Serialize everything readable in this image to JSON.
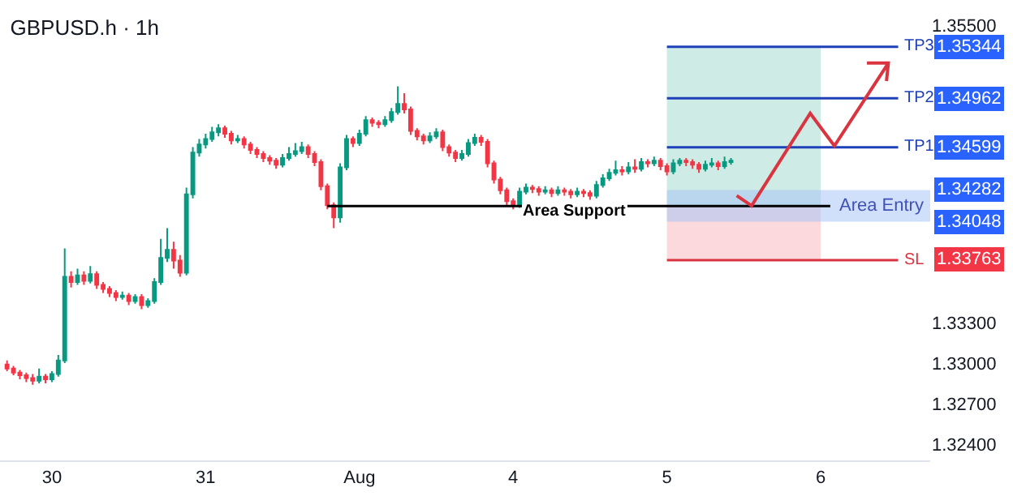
{
  "chart_data": {
    "type": "candlestick",
    "title": "GBPUSD.h · 1h",
    "categories": [
      null,
      null,
      null,
      null,
      null,
      null,
      null,
      "30",
      null,
      null,
      null,
      null,
      null,
      null,
      null,
      null,
      null,
      null,
      null,
      null,
      null,
      null,
      null,
      null,
      null,
      null,
      null,
      null,
      null,
      null,
      null,
      "31",
      null,
      null,
      null,
      null,
      null,
      null,
      null,
      null,
      null,
      null,
      null,
      null,
      null,
      null,
      null,
      null,
      null,
      null,
      null,
      null,
      null,
      null,
      null,
      "Aug",
      null,
      null,
      null,
      null,
      null,
      null,
      null,
      null,
      null,
      null,
      null,
      null,
      null,
      null,
      null,
      null,
      null,
      null,
      null,
      null,
      null,
      null,
      null,
      "4",
      null,
      null,
      null,
      null,
      null,
      null,
      null,
      null,
      null,
      null,
      null,
      null,
      null,
      null,
      null,
      null,
      null,
      null,
      null,
      null,
      null,
      null,
      null,
      "5",
      null,
      null,
      null,
      null,
      null,
      null,
      null,
      null,
      null,
      null,
      null,
      null,
      null,
      null,
      null,
      null,
      null,
      null,
      null,
      null,
      null,
      null,
      null,
      "6",
      null,
      null,
      null,
      null,
      null,
      null,
      null,
      null,
      null,
      null,
      null,
      null,
      null,
      null,
      null,
      null,
      null
    ],
    "ohlc": [
      [
        1.3299,
        1.3302,
        1.3294,
        1.3296
      ],
      [
        1.3296,
        1.3298,
        1.3291,
        1.3293
      ],
      [
        1.3293,
        1.3295,
        1.3288,
        1.3291
      ],
      [
        1.3291,
        1.3293,
        1.3286,
        1.3289
      ],
      [
        1.3289,
        1.3292,
        1.3284,
        1.3287
      ],
      [
        1.3287,
        1.3296,
        1.3285,
        1.329
      ],
      [
        1.329,
        1.3292,
        1.3285,
        1.3288
      ],
      [
        1.3288,
        1.3294,
        1.3286,
        1.3292
      ],
      [
        1.3292,
        1.3306,
        1.329,
        1.3302
      ],
      [
        1.3302,
        1.3385,
        1.33,
        1.3364
      ],
      [
        1.3364,
        1.3368,
        1.3356,
        1.336
      ],
      [
        1.336,
        1.337,
        1.3358,
        1.3365
      ],
      [
        1.3365,
        1.3368,
        1.3358,
        1.3361
      ],
      [
        1.3361,
        1.3372,
        1.3359,
        1.3366
      ],
      [
        1.3366,
        1.3368,
        1.3355,
        1.3358
      ],
      [
        1.3358,
        1.336,
        1.3352,
        1.3355
      ],
      [
        1.3355,
        1.3357,
        1.3349,
        1.3352
      ],
      [
        1.3352,
        1.3354,
        1.3346,
        1.3349
      ],
      [
        1.3349,
        1.3353,
        1.3347,
        1.335
      ],
      [
        1.335,
        1.3352,
        1.3343,
        1.3346
      ],
      [
        1.3346,
        1.3351,
        1.3344,
        1.3349
      ],
      [
        1.3349,
        1.3351,
        1.334,
        1.3343
      ],
      [
        1.3343,
        1.3348,
        1.3341,
        1.3346
      ],
      [
        1.3346,
        1.3363,
        1.3344,
        1.336
      ],
      [
        1.336,
        1.3392,
        1.3358,
        1.3378
      ],
      [
        1.3378,
        1.34,
        1.3375,
        1.3384
      ],
      [
        1.3384,
        1.339,
        1.337,
        1.3376
      ],
      [
        1.3376,
        1.338,
        1.3364,
        1.3367
      ],
      [
        1.3367,
        1.343,
        1.3365,
        1.3425
      ],
      [
        1.3425,
        1.346,
        1.3422,
        1.3456
      ],
      [
        1.3456,
        1.3466,
        1.3453,
        1.3462
      ],
      [
        1.3462,
        1.347,
        1.3459,
        1.3466
      ],
      [
        1.3466,
        1.3475,
        1.3464,
        1.3471
      ],
      [
        1.3471,
        1.3477,
        1.3468,
        1.3474
      ],
      [
        1.3474,
        1.3476,
        1.3467,
        1.347
      ],
      [
        1.347,
        1.3472,
        1.3462,
        1.3465
      ],
      [
        1.3465,
        1.3469,
        1.3463,
        1.3466
      ],
      [
        1.3466,
        1.3468,
        1.3459,
        1.3462
      ],
      [
        1.3462,
        1.3464,
        1.3455,
        1.3458
      ],
      [
        1.3458,
        1.346,
        1.3452,
        1.3455
      ],
      [
        1.3455,
        1.3457,
        1.3449,
        1.3452
      ],
      [
        1.3452,
        1.3454,
        1.3447,
        1.345
      ],
      [
        1.345,
        1.3452,
        1.3444,
        1.3447
      ],
      [
        1.3447,
        1.3455,
        1.3445,
        1.3452
      ],
      [
        1.3452,
        1.346,
        1.345,
        1.3455
      ],
      [
        1.3455,
        1.3463,
        1.3453,
        1.3457
      ],
      [
        1.3457,
        1.3464,
        1.3455,
        1.346
      ],
      [
        1.346,
        1.3462,
        1.3452,
        1.3455
      ],
      [
        1.3455,
        1.3457,
        1.3446,
        1.3449
      ],
      [
        1.3449,
        1.3451,
        1.3428,
        1.3431
      ],
      [
        1.3431,
        1.3433,
        1.3414,
        1.3417
      ],
      [
        1.3417,
        1.3419,
        1.34,
        1.3408
      ],
      [
        1.3408,
        1.3448,
        1.3404,
        1.3445
      ],
      [
        1.3445,
        1.3469,
        1.3443,
        1.3466
      ],
      [
        1.3466,
        1.3468,
        1.346,
        1.3463
      ],
      [
        1.3463,
        1.3473,
        1.3461,
        1.347
      ],
      [
        1.347,
        1.3483,
        1.3468,
        1.348
      ],
      [
        1.348,
        1.3482,
        1.3475,
        1.3478
      ],
      [
        1.3478,
        1.348,
        1.3474,
        1.3477
      ],
      [
        1.3477,
        1.3483,
        1.3475,
        1.348
      ],
      [
        1.348,
        1.3489,
        1.3478,
        1.3486
      ],
      [
        1.3486,
        1.3505,
        1.3484,
        1.3492
      ],
      [
        1.3492,
        1.35,
        1.3485,
        1.3488
      ],
      [
        1.3488,
        1.349,
        1.3469,
        1.3472
      ],
      [
        1.3472,
        1.3474,
        1.3465,
        1.3468
      ],
      [
        1.3468,
        1.347,
        1.3462,
        1.3465
      ],
      [
        1.3465,
        1.3471,
        1.3463,
        1.3468
      ],
      [
        1.3468,
        1.3474,
        1.3466,
        1.3471
      ],
      [
        1.3471,
        1.3473,
        1.3457,
        1.346
      ],
      [
        1.346,
        1.3462,
        1.3453,
        1.3456
      ],
      [
        1.3456,
        1.3458,
        1.3449,
        1.3452
      ],
      [
        1.3452,
        1.3458,
        1.345,
        1.3455
      ],
      [
        1.3455,
        1.3466,
        1.3453,
        1.3463
      ],
      [
        1.3463,
        1.347,
        1.3461,
        1.3467
      ],
      [
        1.3467,
        1.3469,
        1.3461,
        1.3464
      ],
      [
        1.3464,
        1.3466,
        1.3445,
        1.3448
      ],
      [
        1.3448,
        1.345,
        1.3433,
        1.3436
      ],
      [
        1.3436,
        1.3438,
        1.3425,
        1.3428
      ],
      [
        1.3428,
        1.343,
        1.3417,
        1.342
      ],
      [
        1.342,
        1.3422,
        1.3414,
        1.3417
      ],
      [
        1.3417,
        1.343,
        1.3415,
        1.3427
      ],
      [
        1.3427,
        1.3433,
        1.3425,
        1.343
      ],
      [
        1.343,
        1.3432,
        1.3426,
        1.3429
      ],
      [
        1.3429,
        1.3431,
        1.3424,
        1.3427
      ],
      [
        1.3427,
        1.3431,
        1.3425,
        1.3428
      ],
      [
        1.3428,
        1.343,
        1.3423,
        1.3426
      ],
      [
        1.3426,
        1.3431,
        1.3424,
        1.3428
      ],
      [
        1.3428,
        1.343,
        1.3424,
        1.3427
      ],
      [
        1.3427,
        1.3429,
        1.3422,
        1.3425
      ],
      [
        1.3425,
        1.343,
        1.3423,
        1.3427
      ],
      [
        1.3427,
        1.3429,
        1.3423,
        1.3426
      ],
      [
        1.3426,
        1.3428,
        1.3421,
        1.3424
      ],
      [
        1.3424,
        1.3435,
        1.3422,
        1.3432
      ],
      [
        1.3432,
        1.344,
        1.343,
        1.3437
      ],
      [
        1.3437,
        1.3444,
        1.3435,
        1.3441
      ],
      [
        1.3441,
        1.345,
        1.3439,
        1.3443
      ],
      [
        1.3443,
        1.3446,
        1.3439,
        1.3442
      ],
      [
        1.3442,
        1.3449,
        1.344,
        1.3445
      ],
      [
        1.3445,
        1.3451,
        1.3441,
        1.3444
      ],
      [
        1.3444,
        1.3452,
        1.3442,
        1.3449
      ],
      [
        1.3449,
        1.3451,
        1.3445,
        1.3448
      ],
      [
        1.3448,
        1.3453,
        1.3446,
        1.345
      ],
      [
        1.345,
        1.3452,
        1.3443,
        1.3446
      ],
      [
        1.3446,
        1.3448,
        1.3439,
        1.3442
      ],
      [
        1.3442,
        1.3451,
        1.344,
        1.3448
      ],
      [
        1.3448,
        1.3452,
        1.3446,
        1.345
      ],
      [
        1.345,
        1.3452,
        1.3446,
        1.3449
      ],
      [
        1.3449,
        1.3451,
        1.3444,
        1.3447
      ],
      [
        1.3447,
        1.3449,
        1.3441,
        1.3444
      ],
      [
        1.3444,
        1.345,
        1.3442,
        1.3447
      ],
      [
        1.3447,
        1.3452,
        1.3445,
        1.3448
      ],
      [
        1.3448,
        1.345,
        1.3443,
        1.3446
      ],
      [
        1.3446,
        1.3453,
        1.3444,
        1.3449
      ],
      [
        1.3449,
        1.3452,
        1.3447,
        1.345
      ],
      null,
      null,
      null,
      null,
      null,
      null,
      null,
      null,
      null,
      null,
      null,
      null,
      null,
      null,
      null,
      null,
      null,
      null,
      null,
      null,
      null,
      null,
      null,
      null,
      null,
      null,
      null,
      null,
      null,
      null,
      null
    ],
    "colors": [
      "#f23645",
      "#f23645",
      "#f23645",
      "#f23645",
      "#f23645",
      "#089981",
      "#f23645",
      "#089981",
      "#089981",
      "#089981",
      "#f23645",
      "#089981",
      "#f23645",
      "#089981",
      "#f23645",
      "#f23645",
      "#f23645",
      "#f23645",
      "#089981",
      "#f23645",
      "#089981",
      "#f23645",
      "#089981",
      "#089981",
      "#089981",
      "#089981",
      "#f23645",
      "#f23645",
      "#089981",
      "#089981",
      "#089981",
      "#089981",
      "#089981",
      "#089981",
      "#f23645",
      "#f23645",
      "#089981",
      "#f23645",
      "#f23645",
      "#f23645",
      "#f23645",
      "#f23645",
      "#f23645",
      "#089981",
      "#089981",
      "#089981",
      "#089981",
      "#f23645",
      "#f23645",
      "#f23645",
      "#f23645",
      "#f23645",
      "#089981",
      "#089981",
      "#f23645",
      "#089981",
      "#089981",
      "#f23645",
      "#f23645",
      "#089981",
      "#089981",
      "#089981",
      "#f23645",
      "#f23645",
      "#f23645",
      "#f23645",
      "#089981",
      "#089981",
      "#f23645",
      "#f23645",
      "#f23645",
      "#089981",
      "#089981",
      "#089981",
      "#f23645",
      "#f23645",
      "#f23645",
      "#f23645",
      "#f23645",
      "#f23645",
      "#089981",
      "#089981",
      "#f23645",
      "#f23645",
      "#089981",
      "#f23645",
      "#089981",
      "#f23645",
      "#f23645",
      "#089981",
      "#f23645",
      "#f23645",
      "#089981",
      "#089981",
      "#089981",
      "#089981",
      "#f23645",
      "#089981",
      "#f23645",
      "#089981",
      "#f23645",
      "#089981",
      "#f23645",
      "#f23645",
      "#089981",
      "#089981",
      "#f23645",
      "#f23645",
      "#f23645",
      "#089981",
      "#089981",
      "#f23645",
      "#089981",
      "#089981",
      null,
      null,
      null,
      null,
      null,
      null,
      null,
      null,
      null,
      null,
      null,
      null,
      null,
      null,
      null,
      null,
      null,
      null,
      null,
      null,
      null,
      null,
      null,
      null,
      null,
      null,
      null,
      null,
      null,
      null,
      null
    ],
    "ylim": [
      1.3228,
      1.3569
    ],
    "yticks": [
      {
        "value": 1.355,
        "label": "1.35500"
      },
      {
        "value": 1.333,
        "label": "1.33300"
      },
      {
        "value": 1.33,
        "label": "1.33000"
      },
      {
        "value": 1.327,
        "label": "1.32700"
      },
      {
        "value": 1.324,
        "label": "1.32400"
      }
    ],
    "bands": [
      {
        "axis": "y",
        "from": 1.34164,
        "to": 1.35344,
        "color": "#cfebe6"
      },
      {
        "axis": "y",
        "from": 1.33763,
        "to": 1.34164,
        "color": "#fbd9dc"
      },
      {
        "axis": "y",
        "from": 1.34048,
        "to": 1.34282,
        "color": "#a9c4f5",
        "label": "Area Entry"
      }
    ],
    "ref_lines": [
      {
        "axis": "y",
        "value": 1.35344,
        "label": "TP3",
        "color": "#1e40b8"
      },
      {
        "axis": "y",
        "value": 1.34962,
        "label": "TP2",
        "color": "#1e40b8"
      },
      {
        "axis": "y",
        "value": 1.34599,
        "label": "TP1",
        "color": "#1e40b8"
      },
      {
        "axis": "y",
        "value": 1.33763,
        "label": "SL",
        "color": "#d9343f"
      },
      {
        "axis": "y",
        "value": 1.34164,
        "label": "Area Support",
        "color": "#000000"
      }
    ],
    "annotations": [
      {
        "text": "1.35344",
        "y": 1.35344
      },
      {
        "text": "1.34962",
        "y": 1.34962
      },
      {
        "text": "1.34599",
        "y": 1.34599
      },
      {
        "text": "1.34282",
        "y": 1.34282
      },
      {
        "text": "1.34048",
        "y": 1.34048
      },
      {
        "text": "1.33763",
        "y": 1.33763
      }
    ],
    "grid": false
  }
}
